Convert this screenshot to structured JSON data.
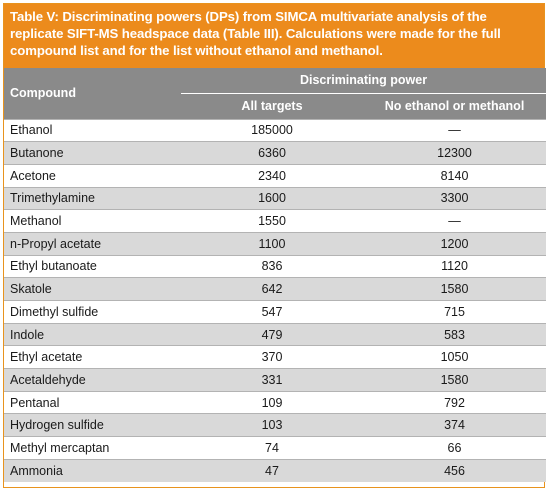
{
  "caption": "Table V: Discriminating powers (DPs) from SIMCA multivariate analysis of the replicate SIFT-MS headspace data (Table III). Calculations were made for the full compound list and for the list without ethanol and methanol.",
  "header": {
    "compound": "Compound",
    "group": "Discriminating power",
    "col_all": "All targets",
    "col_no": "No ethanol or methanol"
  },
  "rows": [
    {
      "compound": "Ethanol",
      "all": "185000",
      "no": "—"
    },
    {
      "compound": "Butanone",
      "all": "6360",
      "no": "12300"
    },
    {
      "compound": "Acetone",
      "all": "2340",
      "no": "8140"
    },
    {
      "compound": "Trimethylamine",
      "all": "1600",
      "no": "3300"
    },
    {
      "compound": "Methanol",
      "all": "1550",
      "no": "—"
    },
    {
      "compound": "n-Propyl acetate",
      "all": "1100",
      "no": "1200"
    },
    {
      "compound": "Ethyl butanoate",
      "all": "836",
      "no": "1120"
    },
    {
      "compound": "Skatole",
      "all": "642",
      "no": "1580"
    },
    {
      "compound": "Dimethyl sulfide",
      "all": "547",
      "no": "715"
    },
    {
      "compound": "Indole",
      "all": "479",
      "no": "583"
    },
    {
      "compound": "Ethyl acetate",
      "all": "370",
      "no": "1050"
    },
    {
      "compound": "Acetaldehyde",
      "all": "331",
      "no": "1580"
    },
    {
      "compound": "Pentanal",
      "all": "109",
      "no": "792"
    },
    {
      "compound": "Hydrogen sulfide",
      "all": "103",
      "no": "374"
    },
    {
      "compound": "Methyl mercaptan",
      "all": "74",
      "no": "66"
    },
    {
      "compound": "Ammonia",
      "all": "47",
      "no": "456"
    }
  ]
}
